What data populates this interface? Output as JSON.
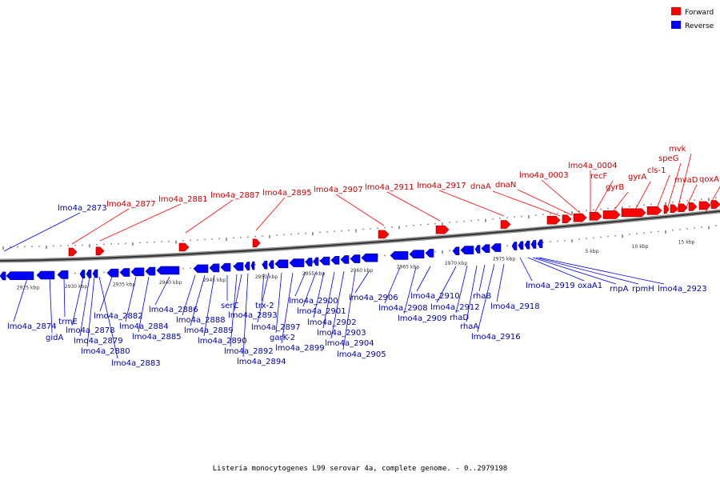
{
  "legend": [
    {
      "label": "Forward",
      "color": "#ff0000"
    },
    {
      "label": "Reverse",
      "color": "#0000ff"
    }
  ],
  "caption": "Listeria monocytogenes L99 serovar 4a, complete genome. - 0..2979198",
  "ticks_lower": [
    "2925 kbp",
    "2930 kbp",
    "2935 kbp",
    "2940 kbp",
    "2945 kbp",
    "2950 kbp",
    "2955 kbp",
    "2960 kbp",
    "2965 kbp",
    "2970 kbp",
    "2975 kbp",
    "5 kbp",
    "10 kbp",
    "15 kbp"
  ],
  "forward_labels": [
    "lmo4a_2873",
    "lmo4a_2877",
    "lmo4a_2881",
    "lmo4a_2887",
    "lmo4a_2895",
    "lmo4a_2907",
    "lmo4a_2911",
    "lmo4a_2917",
    "dnaA",
    "dnaN",
    "lmo4a_0003",
    "lmo4a_0004",
    "recF",
    "gyrB",
    "gyrA",
    "cls-1",
    "speG",
    "mvk",
    "mvaD",
    "qoxA"
  ],
  "reverse_labels": [
    "lmo4a_2874",
    "gidA",
    "trmE",
    "lmo4a_2878",
    "lmo4a_2879",
    "lmo4a_2880",
    "lmo4a_2882",
    "lmo4a_2883",
    "lmo4a_2884",
    "lmo4a_2885",
    "lmo4a_2886",
    "lmo4a_2888",
    "lmo4a_2889",
    "lmo4a_2890",
    "serC",
    "lmo4a_2892",
    "lmo4a_2893",
    "lmo4a_2894",
    "trx-2",
    "lmo4a_2897",
    "garK-2",
    "lmo4a_2899",
    "lmo4a_2900",
    "lmo4a_2901",
    "lmo4a_2902",
    "lmo4a_2903",
    "lmo4a_2904",
    "lmo4a_2905",
    "lmo4a_2906",
    "lmo4a_2908",
    "lmo4a_2909",
    "lmo4a_2910",
    "lmo4a_2912",
    "rhaD",
    "rhaA",
    "rhaB",
    "lmo4a_2916",
    "lmo4a_2918",
    "lmo4a_2919",
    "oxaA1",
    "rnpA",
    "rpmH",
    "lmo4a_2923"
  ]
}
